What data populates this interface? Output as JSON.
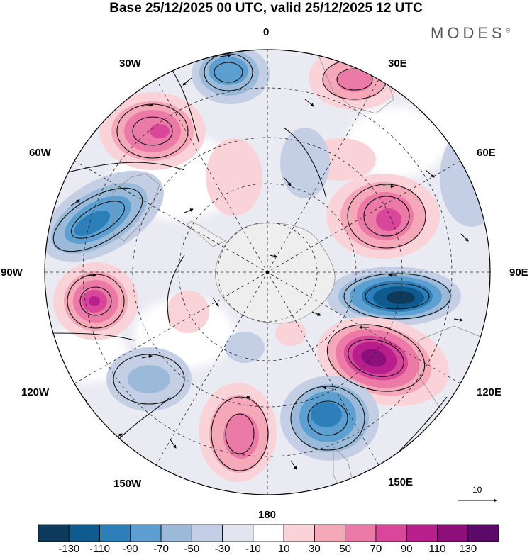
{
  "header": {
    "title": "Base 25/12/2025 00 UTC, valid 25/12/2025 12 UTC",
    "brand": "MODES",
    "brand_mark": "©"
  },
  "map": {
    "projection": "south-polar-stereographic",
    "longitude_labels": [
      "0",
      "30E",
      "60E",
      "90E",
      "120E",
      "150E",
      "180",
      "150W",
      "120W",
      "90W",
      "60W",
      "30W"
    ],
    "reference_vector_label": "10"
  },
  "colorbar": {
    "ticks": [
      "-130",
      "-110",
      "-90",
      "-70",
      "-50",
      "-30",
      "-10",
      "10",
      "30",
      "50",
      "70",
      "90",
      "110",
      "130"
    ],
    "colors": [
      "#0e3b5c",
      "#0f5b8f",
      "#2c7fb8",
      "#5d9fd0",
      "#9bbad9",
      "#c4cfe6",
      "#e4e4f0",
      "#ffffff",
      "#f9d3d8",
      "#f4a8b8",
      "#eb7aa6",
      "#d9479b",
      "#b81e8c",
      "#8c0f7c",
      "#5b0a6a"
    ]
  }
}
